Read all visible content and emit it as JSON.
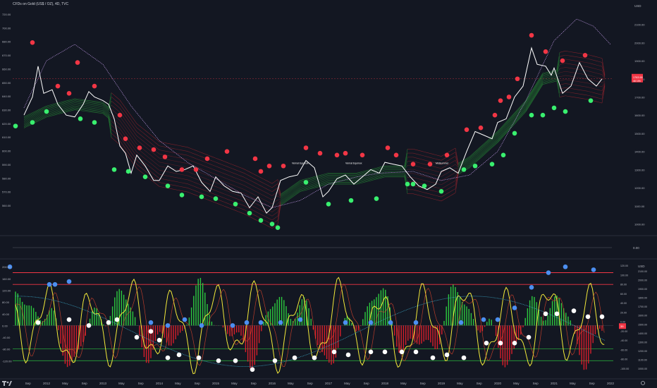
{
  "header": {
    "title": "CFDs on Gold (US$ / OZ), 4D, TVC"
  },
  "main_pane": {
    "left_ticks": [
      "720.00",
      "700.00",
      "680.00",
      "670.00",
      "660.00",
      "650.00",
      "640.00",
      "630.00",
      "620.00",
      "610.00",
      "600.00",
      "590.00",
      "580.00",
      "570.00",
      "560.00"
    ],
    "right_ticks": [
      "2100.00",
      "2000.00",
      "1900.00",
      "1800.00",
      "1700.00",
      "1600.00",
      "1500.00",
      "1400.00",
      "1300.00",
      "1200.00",
      "1100.00",
      "1000.00"
    ],
    "price_tag": {
      "value": "1763.90",
      "sub": "46 19h",
      "color": "#f23645"
    },
    "annotations": [
      {
        "text": "Vernal Equinox",
        "x": 2016.35
      },
      {
        "text": "Vernal Equinox",
        "x": 2017.3
      },
      {
        "text": "Midsummer",
        "x": 2018.9
      }
    ],
    "price": [
      [
        2011.6,
        1600
      ],
      [
        2011.75,
        1700
      ],
      [
        2011.85,
        1870
      ],
      [
        2011.95,
        1720
      ],
      [
        2012.1,
        1740
      ],
      [
        2012.2,
        1660
      ],
      [
        2012.35,
        1600
      ],
      [
        2012.5,
        1590
      ],
      [
        2012.65,
        1660
      ],
      [
        2012.75,
        1730
      ],
      [
        2012.85,
        1700
      ],
      [
        2013.0,
        1680
      ],
      [
        2013.1,
        1660
      ],
      [
        2013.2,
        1580
      ],
      [
        2013.3,
        1430
      ],
      [
        2013.4,
        1390
      ],
      [
        2013.5,
        1280
      ],
      [
        2013.6,
        1380
      ],
      [
        2013.75,
        1320
      ],
      [
        2013.9,
        1240
      ],
      [
        2014.0,
        1240
      ],
      [
        2014.15,
        1320
      ],
      [
        2014.3,
        1290
      ],
      [
        2014.45,
        1300
      ],
      [
        2014.6,
        1320
      ],
      [
        2014.75,
        1230
      ],
      [
        2014.9,
        1180
      ],
      [
        2015.0,
        1260
      ],
      [
        2015.15,
        1210
      ],
      [
        2015.3,
        1180
      ],
      [
        2015.45,
        1170
      ],
      [
        2015.6,
        1090
      ],
      [
        2015.75,
        1150
      ],
      [
        2015.9,
        1060
      ],
      [
        2016.0,
        1090
      ],
      [
        2016.15,
        1240
      ],
      [
        2016.3,
        1260
      ],
      [
        2016.45,
        1270
      ],
      [
        2016.6,
        1350
      ],
      [
        2016.75,
        1310
      ],
      [
        2016.9,
        1150
      ],
      [
        2017.0,
        1180
      ],
      [
        2017.15,
        1250
      ],
      [
        2017.3,
        1270
      ],
      [
        2017.45,
        1220
      ],
      [
        2017.6,
        1260
      ],
      [
        2017.75,
        1300
      ],
      [
        2017.9,
        1280
      ],
      [
        2018.0,
        1340
      ],
      [
        2018.15,
        1330
      ],
      [
        2018.3,
        1320
      ],
      [
        2018.45,
        1260
      ],
      [
        2018.6,
        1210
      ],
      [
        2018.75,
        1190
      ],
      [
        2018.9,
        1220
      ],
      [
        2019.0,
        1290
      ],
      [
        2019.15,
        1310
      ],
      [
        2019.3,
        1280
      ],
      [
        2019.45,
        1400
      ],
      [
        2019.6,
        1510
      ],
      [
        2019.75,
        1490
      ],
      [
        2019.9,
        1470
      ],
      [
        2020.0,
        1560
      ],
      [
        2020.15,
        1580
      ],
      [
        2020.3,
        1700
      ],
      [
        2020.45,
        1760
      ],
      [
        2020.6,
        1970
      ],
      [
        2020.7,
        1880
      ],
      [
        2020.85,
        1870
      ],
      [
        2020.95,
        1820
      ],
      [
        2021.0,
        1860
      ],
      [
        2021.15,
        1720
      ],
      [
        2021.3,
        1760
      ],
      [
        2021.45,
        1890
      ],
      [
        2021.6,
        1800
      ],
      [
        2021.75,
        1760
      ],
      [
        2021.85,
        1800
      ]
    ],
    "ribbon_center": [
      [
        2011.6,
        1560
      ],
      [
        2012.0,
        1620
      ],
      [
        2012.5,
        1660
      ],
      [
        2013.0,
        1640
      ],
      [
        2013.3,
        1560
      ],
      [
        2013.6,
        1430
      ],
      [
        2014.0,
        1330
      ],
      [
        2014.5,
        1300
      ],
      [
        2015.0,
        1240
      ],
      [
        2015.5,
        1180
      ],
      [
        2016.0,
        1100
      ],
      [
        2016.5,
        1210
      ],
      [
        2017.0,
        1250
      ],
      [
        2017.5,
        1250
      ],
      [
        2018.0,
        1290
      ],
      [
        2018.5,
        1290
      ],
      [
        2019.0,
        1250
      ],
      [
        2019.5,
        1340
      ],
      [
        2020.0,
        1480
      ],
      [
        2020.5,
        1650
      ],
      [
        2020.8,
        1800
      ],
      [
        2021.2,
        1830
      ],
      [
        2021.6,
        1810
      ],
      [
        2021.85,
        1790
      ]
    ],
    "red_ranges": [
      [
        2013.1,
        2016.1
      ],
      [
        2018.35,
        2019.25
      ],
      [
        2021.05,
        2021.85
      ]
    ],
    "purple_ma": [
      [
        2011.6,
        1640
      ],
      [
        2012.0,
        1900
      ],
      [
        2012.5,
        1990
      ],
      [
        2013.0,
        1880
      ],
      [
        2013.5,
        1650
      ],
      [
        2014.0,
        1460
      ],
      [
        2014.5,
        1340
      ],
      [
        2015.0,
        1250
      ],
      [
        2015.5,
        1160
      ],
      [
        2016.0,
        1090
      ],
      [
        2016.5,
        1130
      ],
      [
        2017.0,
        1220
      ],
      [
        2017.5,
        1260
      ],
      [
        2017.9,
        1280
      ],
      [
        2018.5,
        1290
      ],
      [
        2019.0,
        1240
      ],
      [
        2019.5,
        1270
      ],
      [
        2020.0,
        1400
      ],
      [
        2020.5,
        1680
      ],
      [
        2021.0,
        2010
      ],
      [
        2021.4,
        2130
      ],
      [
        2021.7,
        2090
      ],
      [
        2022.0,
        1990
      ]
    ],
    "red_dots": [
      [
        2011.75,
        2000
      ],
      [
        2012.55,
        1890
      ],
      [
        2012.2,
        1760
      ],
      [
        2012.4,
        1720
      ],
      [
        2012.85,
        1760
      ],
      [
        2013.3,
        1600
      ],
      [
        2013.4,
        1470
      ],
      [
        2013.65,
        1420
      ],
      [
        2013.9,
        1410
      ],
      [
        2014.1,
        1370
      ],
      [
        2014.4,
        1300
      ],
      [
        2014.65,
        1300
      ],
      [
        2014.85,
        1360
      ],
      [
        2015.2,
        1400
      ],
      [
        2015.7,
        1360
      ],
      [
        2015.8,
        1290
      ],
      [
        2015.95,
        1320
      ],
      [
        2016.2,
        1320
      ],
      [
        2016.6,
        1420
      ],
      [
        2016.85,
        1390
      ],
      [
        2017.15,
        1380
      ],
      [
        2017.3,
        1390
      ],
      [
        2017.6,
        1380
      ],
      [
        2018.05,
        1420
      ],
      [
        2018.2,
        1380
      ],
      [
        2018.5,
        1330
      ],
      [
        2018.8,
        1330
      ],
      [
        2019.1,
        1380
      ],
      [
        2019.45,
        1520
      ],
      [
        2019.7,
        1530
      ],
      [
        2019.95,
        1600
      ],
      [
        2020.05,
        1680
      ],
      [
        2020.2,
        1700
      ],
      [
        2020.35,
        1800
      ],
      [
        2020.6,
        2040
      ],
      [
        2020.85,
        1950
      ],
      [
        2021.15,
        1900
      ],
      [
        2021.55,
        1930
      ]
    ],
    "green_dots": [
      [
        2011.45,
        1540
      ],
      [
        2011.75,
        1560
      ],
      [
        2012.0,
        1620
      ],
      [
        2012.6,
        1580
      ],
      [
        2012.85,
        1560
      ],
      [
        2013.2,
        1300
      ],
      [
        2013.45,
        1290
      ],
      [
        2013.75,
        1260
      ],
      [
        2014.15,
        1210
      ],
      [
        2014.4,
        1160
      ],
      [
        2014.75,
        1150
      ],
      [
        2015.0,
        1140
      ],
      [
        2015.35,
        1110
      ],
      [
        2015.6,
        1060
      ],
      [
        2015.8,
        1020
      ],
      [
        2016.0,
        1000
      ],
      [
        2016.1,
        980
      ],
      [
        2016.6,
        1230
      ],
      [
        2017.0,
        1110
      ],
      [
        2017.4,
        1130
      ],
      [
        2017.85,
        1140
      ],
      [
        2018.4,
        1220
      ],
      [
        2018.5,
        1220
      ],
      [
        2018.7,
        1210
      ],
      [
        2019.0,
        1180
      ],
      [
        2019.4,
        1300
      ],
      [
        2019.6,
        1320
      ],
      [
        2019.9,
        1330
      ],
      [
        2020.1,
        1380
      ],
      [
        2020.3,
        1500
      ],
      [
        2020.6,
        1600
      ],
      [
        2020.8,
        1600
      ],
      [
        2021.0,
        1640
      ],
      [
        2021.2,
        1620
      ],
      [
        2021.65,
        1680
      ]
    ]
  },
  "sub_pane": {
    "label": "0.00"
  },
  "osc_pane": {
    "left_ticks": [
      "200.00",
      "160.00",
      "120.00",
      "80.00",
      "40.00",
      "0.00",
      "-40.00",
      "-80.00",
      "-120.00"
    ],
    "right_ticks": [
      "120.00",
      "100.00",
      "80.00",
      "60.00",
      "40.00",
      "20.00",
      "0.00",
      "-20.00",
      "-40.00",
      "-60.00",
      "-80.00",
      "-100.00"
    ],
    "right_price_ticks": [
      "2100.00",
      "2000.00",
      "1900.00",
      "1800.00",
      "1700.00",
      "1600.00",
      "1500.00",
      "1400.00",
      "1300.00",
      "1200.00",
      "1100.00",
      "1000.00"
    ],
    "levels": {
      "red_high": 180,
      "red_mid": 140,
      "green_low": -80,
      "green_bottom": -120
    },
    "blue_dots": [
      [
        2011.35,
        200
      ],
      [
        2012.05,
        140
      ],
      [
        2012.15,
        140
      ],
      [
        2012.4,
        150
      ],
      [
        2013.85,
        10
      ],
      [
        2014.15,
        0
      ],
      [
        2014.45,
        20
      ],
      [
        2014.75,
        0
      ],
      [
        2015.3,
        0
      ],
      [
        2015.55,
        10
      ],
      [
        2015.8,
        10
      ],
      [
        2016.15,
        10
      ],
      [
        2016.5,
        20
      ],
      [
        2017.3,
        10
      ],
      [
        2017.75,
        10
      ],
      [
        2018.1,
        10
      ],
      [
        2018.55,
        10
      ],
      [
        2019.35,
        10
      ],
      [
        2019.75,
        20
      ],
      [
        2020.0,
        20
      ],
      [
        2020.3,
        60
      ],
      [
        2020.6,
        130
      ],
      [
        2020.9,
        180
      ],
      [
        2021.2,
        200
      ],
      [
        2021.7,
        190
      ]
    ],
    "white_dots": [
      [
        2011.85,
        10
      ],
      [
        2012.4,
        20
      ],
      [
        2012.75,
        0
      ],
      [
        2013.1,
        10
      ],
      [
        2013.25,
        20
      ],
      [
        2013.6,
        -40
      ],
      [
        2013.85,
        -20
      ],
      [
        2014.0,
        -50
      ],
      [
        2014.15,
        -110
      ],
      [
        2014.35,
        -100
      ],
      [
        2014.7,
        -110
      ],
      [
        2015.05,
        -120
      ],
      [
        2015.35,
        -120
      ],
      [
        2015.65,
        -150
      ],
      [
        2016.05,
        -120
      ],
      [
        2016.4,
        -110
      ],
      [
        2016.75,
        -110
      ],
      [
        2017.1,
        -90
      ],
      [
        2017.35,
        -100
      ],
      [
        2017.75,
        -90
      ],
      [
        2018.0,
        -90
      ],
      [
        2018.3,
        -90
      ],
      [
        2018.55,
        -90
      ],
      [
        2018.85,
        -110
      ],
      [
        2019.1,
        -100
      ],
      [
        2019.4,
        -110
      ],
      [
        2019.8,
        -60
      ],
      [
        2020.05,
        -60
      ],
      [
        2020.3,
        -60
      ],
      [
        2020.55,
        -40
      ],
      [
        2020.85,
        40
      ],
      [
        2021.05,
        40
      ],
      [
        2021.35,
        50
      ],
      [
        2021.6,
        30
      ],
      [
        2021.85,
        30
      ]
    ],
    "tag_value": "39"
  },
  "x_axis": {
    "labels": [
      {
        "t": "Sep",
        "x": 2011.67
      },
      {
        "t": "2012",
        "x": 2012.0
      },
      {
        "t": "May",
        "x": 2012.33
      },
      {
        "t": "Sep",
        "x": 2012.67
      },
      {
        "t": "2013",
        "x": 2013.0
      },
      {
        "t": "May",
        "x": 2013.33
      },
      {
        "t": "Sep",
        "x": 2013.67
      },
      {
        "t": "2014",
        "x": 2014.0
      },
      {
        "t": "May",
        "x": 2014.33
      },
      {
        "t": "Sep",
        "x": 2014.67
      },
      {
        "t": "2015",
        "x": 2015.0
      },
      {
        "t": "May",
        "x": 2015.33
      },
      {
        "t": "Sep",
        "x": 2015.67
      },
      {
        "t": "2016",
        "x": 2016.0
      },
      {
        "t": "May",
        "x": 2016.33
      },
      {
        "t": "Sep",
        "x": 2016.67
      },
      {
        "t": "2017",
        "x": 2017.0
      },
      {
        "t": "May",
        "x": 2017.33
      },
      {
        "t": "Sep",
        "x": 2017.67
      },
      {
        "t": "2018",
        "x": 2018.0
      },
      {
        "t": "May",
        "x": 2018.33
      },
      {
        "t": "Sep",
        "x": 2018.67
      },
      {
        "t": "2019",
        "x": 2019.0
      },
      {
        "t": "May",
        "x": 2019.33
      },
      {
        "t": "Sep",
        "x": 2019.67
      },
      {
        "t": "2020",
        "x": 2020.0
      },
      {
        "t": "May",
        "x": 2020.33
      },
      {
        "t": "Sep",
        "x": 2020.67
      },
      {
        "t": "2021",
        "x": 2021.0
      },
      {
        "t": "May",
        "x": 2021.33
      },
      {
        "t": "Sep",
        "x": 2021.67
      },
      {
        "t": "2022",
        "x": 2022.0
      }
    ],
    "range": [
      2011.4,
      2022.05
    ]
  },
  "colors": {
    "bg": "#131722",
    "red": "#f23645",
    "green": "#39f06f",
    "blue": "#4c8ff1",
    "yellow": "#f3ea3a",
    "white": "#ffffff",
    "purple": "#c9a0f0",
    "cyan": "#3aa6c4",
    "axis": "#b2b5be"
  }
}
